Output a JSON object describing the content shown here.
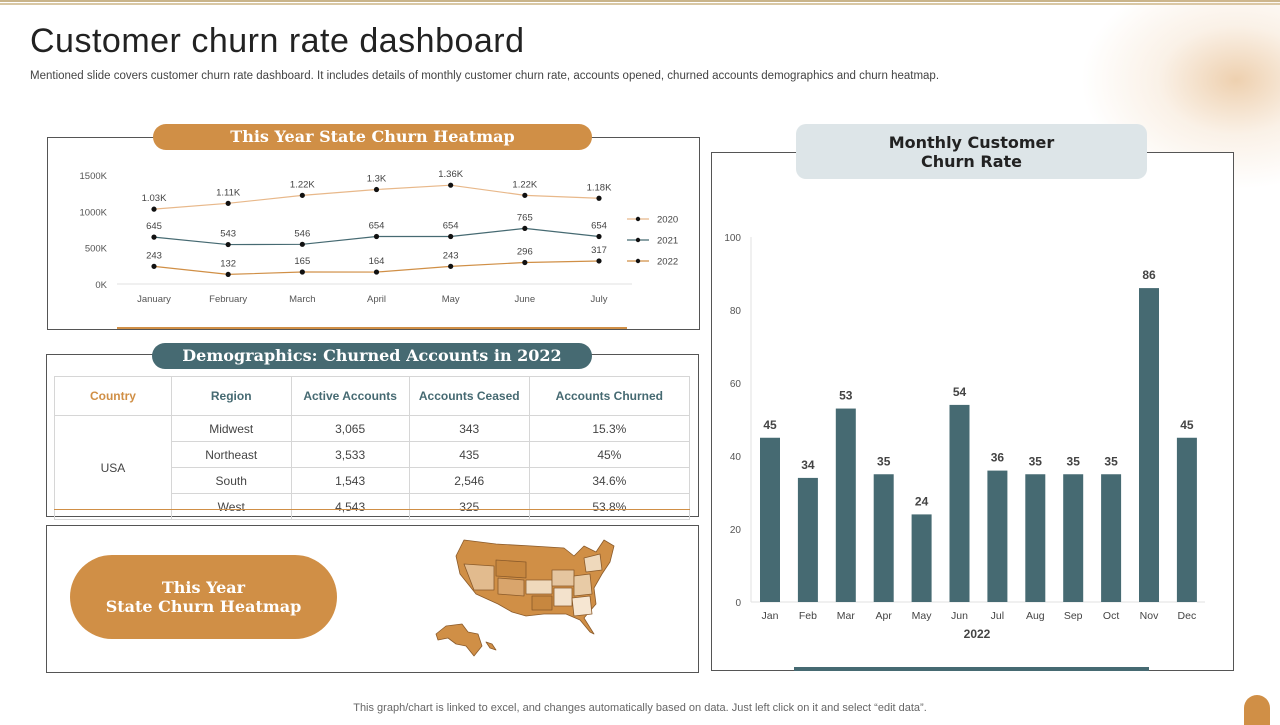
{
  "header": {
    "title": "Customer churn rate dashboard",
    "subtitle": "Mentioned slide covers customer churn rate dashboard. It includes details of monthly customer churn rate, accounts opened, churned accounts demographics and churn heatmap."
  },
  "line_panel": {
    "title": "This Year State Churn Heatmap"
  },
  "demo_panel": {
    "title": "Demographics:  Churned Accounts  in  2022",
    "headers": [
      "Country",
      "Region",
      "Active Accounts",
      "Accounts Ceased",
      "Accounts Churned"
    ],
    "country": "USA",
    "rows": [
      {
        "region": "Midwest",
        "active": "3,065",
        "ceased": "343",
        "churned": "15.3%"
      },
      {
        "region": "Northeast",
        "active": "3,533",
        "ceased": "435",
        "churned": "45%"
      },
      {
        "region": "South",
        "active": "1,543",
        "ceased": "2,546",
        "churned": "34.6%"
      },
      {
        "region": "West",
        "active": "4,543",
        "ceased": "325",
        "churned": "53.8%"
      }
    ]
  },
  "map_panel": {
    "cta_line1": "This Year",
    "cta_line2": "State Churn Heatmap",
    "map_icon": "usa-map-icon"
  },
  "bar_panel": {
    "title_line1": "Monthly Customer",
    "title_line2": "Churn Rate"
  },
  "footer": {
    "note": "This graph/chart is linked to excel,  and changes automatically based on data. Just left click on it and select “edit data”."
  },
  "colors": {
    "orange": "#d08f46",
    "teal": "#466a72",
    "light_orange": "#e8b88a",
    "pill_grey": "#dde5e8"
  },
  "chart_data": [
    {
      "type": "line",
      "title": "This Year State Churn Heatmap",
      "categories": [
        "January",
        "February",
        "March",
        "April",
        "May",
        "June",
        "July"
      ],
      "y_ticks": [
        "1500K",
        "1000K",
        "500K",
        "0K"
      ],
      "ylim": [
        0,
        1500
      ],
      "series": [
        {
          "name": "2020",
          "values": [
            1030,
            1110,
            1220,
            1300,
            1360,
            1220,
            1180
          ],
          "labels": [
            "1.03K",
            "1.11K",
            "1.22K",
            "1.3K",
            "1.36K",
            "1.22K",
            "1.18K"
          ],
          "color": "#e8b88a"
        },
        {
          "name": "2021",
          "values": [
            645,
            543,
            546,
            654,
            654,
            765,
            654
          ],
          "labels": [
            "645",
            "543",
            "546",
            "654",
            "654",
            "765",
            "654"
          ],
          "color": "#466a72"
        },
        {
          "name": "2022",
          "values": [
            243,
            132,
            165,
            164,
            243,
            296,
            317
          ],
          "labels": [
            "243",
            "132",
            "165",
            "164",
            "243",
            "296",
            "317"
          ],
          "color": "#d08f46"
        }
      ],
      "legend": "right"
    },
    {
      "type": "bar",
      "title": "Monthly Customer Churn Rate",
      "categories": [
        "Jan",
        "Feb",
        "Mar",
        "Apr",
        "May",
        "Jun",
        "Jul",
        "Aug",
        "Sep",
        "Oct",
        "Nov",
        "Dec"
      ],
      "values": [
        45,
        34,
        53,
        35,
        24,
        54,
        36,
        35,
        35,
        35,
        86,
        45
      ],
      "xlabel": "2022",
      "ylim": [
        0,
        100
      ],
      "y_ticks": [
        0,
        20,
        40,
        60,
        80,
        100
      ],
      "color": "#466a72"
    }
  ]
}
